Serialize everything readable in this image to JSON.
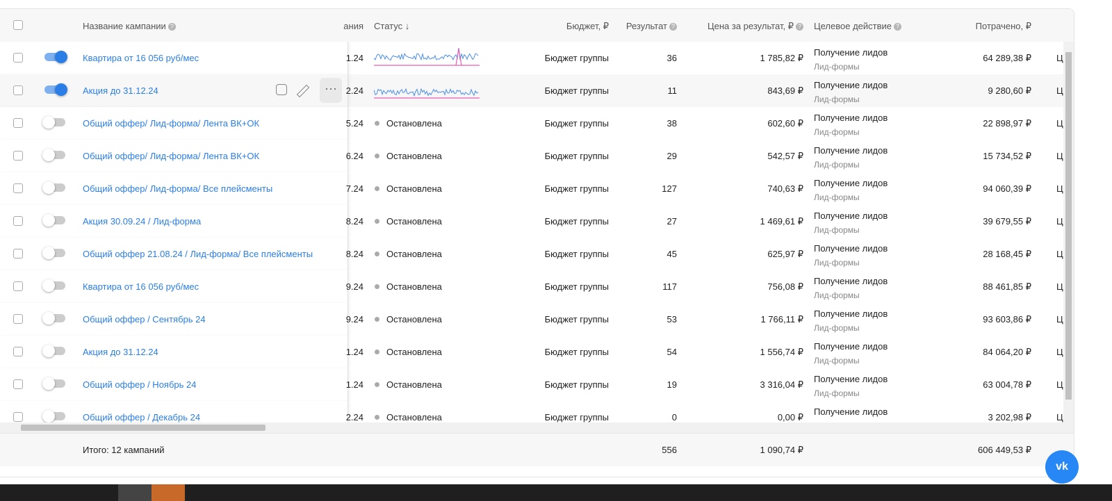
{
  "header": {
    "name": "Название кампании",
    "date": "ания",
    "status": "Статус ↓",
    "budget": "Бюджет, ₽",
    "result": "Результат",
    "price": "Цена за результат, ₽",
    "action": "Целевое действие",
    "spent": "Потрачено, ₽"
  },
  "rows": [
    {
      "enabled": true,
      "name": "Квартира от 16 056 руб/мес",
      "date": "1.24",
      "budget": "Бюджет группы",
      "result": 36,
      "price": "1 785,82 ₽",
      "action": "Получение лидов",
      "action_sub": "Лид-формы",
      "spent": "64 289,38 ₽",
      "next": "Ц"
    },
    {
      "enabled": true,
      "name": "Акция до 31.12.24",
      "date": "2.24",
      "budget": "Бюджет группы",
      "result": 11,
      "price": "843,69 ₽",
      "action": "Получение лидов",
      "action_sub": "Лид-формы",
      "spent": "9 280,60 ₽",
      "next": "Ц"
    },
    {
      "enabled": false,
      "name": "Общий оффер/ Лид-форма/ Лента ВК+ОК",
      "date": "5.24",
      "status": "Остановлена",
      "budget": "Бюджет группы",
      "result": 38,
      "price": "602,60 ₽",
      "action": "Получение лидов",
      "action_sub": "Лид-формы",
      "spent": "22 898,97 ₽",
      "next": "Ц"
    },
    {
      "enabled": false,
      "name": "Общий оффер/ Лид-форма/ Лента ВК+ОК",
      "date": "6.24",
      "status": "Остановлена",
      "budget": "Бюджет группы",
      "result": 29,
      "price": "542,57 ₽",
      "action": "Получение лидов",
      "action_sub": "Лид-формы",
      "spent": "15 734,52 ₽",
      "next": "Ц"
    },
    {
      "enabled": false,
      "name": "Общий оффер/ Лид-форма/ Все плейсменты",
      "date": "7.24",
      "status": "Остановлена",
      "budget": "Бюджет группы",
      "result": 127,
      "price": "740,63 ₽",
      "action": "Получение лидов",
      "action_sub": "Лид-формы",
      "spent": "94 060,39 ₽",
      "next": "Ц"
    },
    {
      "enabled": false,
      "name": "Акция 30.09.24 / Лид-форма",
      "date": "8.24",
      "status": "Остановлена",
      "budget": "Бюджет группы",
      "result": 27,
      "price": "1 469,61 ₽",
      "action": "Получение лидов",
      "action_sub": "Лид-формы",
      "spent": "39 679,55 ₽",
      "next": "Ц"
    },
    {
      "enabled": false,
      "name": "Общий оффер 21.08.24 / Лид-форма/ Все плейсменты",
      "date": "8.24",
      "status": "Остановлена",
      "budget": "Бюджет группы",
      "result": 45,
      "price": "625,97 ₽",
      "action": "Получение лидов",
      "action_sub": "Лид-формы",
      "spent": "28 168,45 ₽",
      "next": "Ц"
    },
    {
      "enabled": false,
      "name": "Квартира от 16 056 руб/мес",
      "date": "9.24",
      "status": "Остановлена",
      "budget": "Бюджет группы",
      "result": 117,
      "price": "756,08 ₽",
      "action": "Получение лидов",
      "action_sub": "Лид-формы",
      "spent": "88 461,85 ₽",
      "next": "Ц"
    },
    {
      "enabled": false,
      "name": "Общий оффер / Сентябрь 24",
      "date": "9.24",
      "status": "Остановлена",
      "budget": "Бюджет группы",
      "result": 53,
      "price": "1 766,11 ₽",
      "action": "Получение лидов",
      "action_sub": "Лид-формы",
      "spent": "93 603,86 ₽",
      "next": "Ц"
    },
    {
      "enabled": false,
      "name": "Акция до 31.12.24",
      "date": "1.24",
      "status": "Остановлена",
      "budget": "Бюджет группы",
      "result": 54,
      "price": "1 556,74 ₽",
      "action": "Получение лидов",
      "action_sub": "Лид-формы",
      "spent": "84 064,20 ₽",
      "next": "Ц"
    },
    {
      "enabled": false,
      "name": "Общий оффер / Ноябрь 24",
      "date": "1.24",
      "status": "Остановлена",
      "budget": "Бюджет группы",
      "result": 19,
      "price": "3 316,04 ₽",
      "action": "Получение лидов",
      "action_sub": "Лид-формы",
      "spent": "63 004,78 ₽",
      "next": "Ц"
    },
    {
      "enabled": false,
      "name": "Общий оффер / Декабрь 24",
      "date": "2.24",
      "status": "Остановлена",
      "budget": "Бюджет группы",
      "result": 0,
      "price": "0,00 ₽",
      "action": "Получение лидов",
      "spent": "3 202,98 ₽",
      "next": "Ц"
    }
  ],
  "footer": {
    "total": "Итого: 12 кампаний",
    "result": 556,
    "price": "1 090,74 ₽",
    "spent": "606 449,53 ₽"
  }
}
